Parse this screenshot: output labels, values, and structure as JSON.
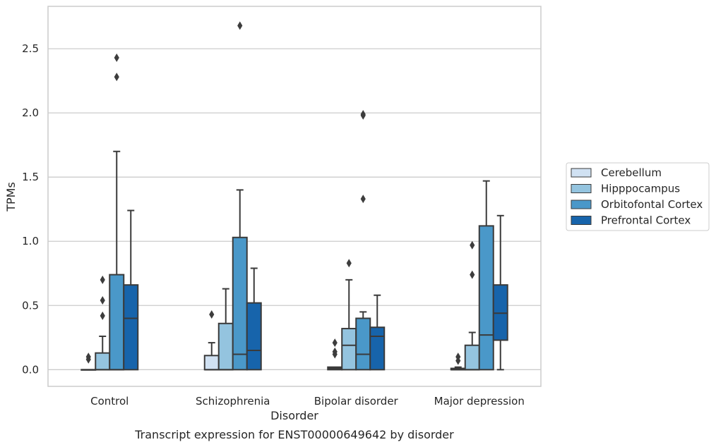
{
  "caption": "Transcript expression for ENST00000649642 by disorder",
  "chart_data": {
    "type": "box",
    "xlabel": "Disorder",
    "ylabel": "TPMs",
    "ylim": [
      -0.13,
      2.83
    ],
    "yticks": [
      "0.0",
      "0.5",
      "1.0",
      "1.5",
      "2.0",
      "2.5"
    ],
    "grid": true,
    "legend_position": "right",
    "categories": [
      "Control",
      "Schizophrenia",
      "Bipolar disorder",
      "Major depression"
    ],
    "series": [
      {
        "name": "Cerebellum",
        "color": "#d0e1f2",
        "boxes": [
          {
            "q1": 0.0,
            "median": 0.0,
            "q3": 0.0,
            "whisker_low": 0.0,
            "whisker_high": 0.0,
            "outliers": [
              0.08,
              0.1
            ]
          },
          {
            "q1": 0.0,
            "median": 0.0,
            "q3": 0.11,
            "whisker_low": 0.0,
            "whisker_high": 0.21,
            "outliers": [
              0.43
            ]
          },
          {
            "q1": 0.0,
            "median": 0.01,
            "q3": 0.02,
            "whisker_low": 0.0,
            "whisker_high": 0.02,
            "outliers": [
              0.12,
              0.14,
              0.21
            ]
          },
          {
            "q1": 0.0,
            "median": 0.0,
            "q3": 0.01,
            "whisker_low": 0.0,
            "whisker_high": 0.02,
            "outliers": [
              0.07,
              0.1
            ]
          }
        ]
      },
      {
        "name": "Hipppocampus",
        "color": "#94c4df",
        "boxes": [
          {
            "q1": 0.0,
            "median": 0.0,
            "q3": 0.13,
            "whisker_low": 0.0,
            "whisker_high": 0.26,
            "outliers": [
              0.42,
              0.54,
              0.7
            ]
          },
          {
            "q1": 0.0,
            "median": 0.0,
            "q3": 0.36,
            "whisker_low": 0.0,
            "whisker_high": 0.63,
            "outliers": []
          },
          {
            "q1": 0.0,
            "median": 0.19,
            "q3": 0.32,
            "whisker_low": 0.0,
            "whisker_high": 0.7,
            "outliers": [
              0.83
            ]
          },
          {
            "q1": 0.0,
            "median": 0.0,
            "q3": 0.19,
            "whisker_low": 0.0,
            "whisker_high": 0.29,
            "outliers": [
              0.74,
              0.97
            ]
          }
        ]
      },
      {
        "name": "Orbitofontal Cortex",
        "color": "#4a98c9",
        "boxes": [
          {
            "q1": 0.0,
            "median": 0.0,
            "q3": 0.74,
            "whisker_low": 0.0,
            "whisker_high": 1.7,
            "outliers": [
              2.28,
              2.43
            ]
          },
          {
            "q1": 0.0,
            "median": 0.12,
            "q3": 1.03,
            "whisker_low": 0.0,
            "whisker_high": 1.4,
            "outliers": [
              2.68
            ]
          },
          {
            "q1": 0.0,
            "median": 0.12,
            "q3": 0.4,
            "whisker_low": 0.0,
            "whisker_high": 0.45,
            "outliers": [
              1.33,
              1.98,
              1.99
            ]
          },
          {
            "q1": 0.0,
            "median": 0.27,
            "q3": 1.12,
            "whisker_low": 0.0,
            "whisker_high": 1.47,
            "outliers": []
          }
        ]
      },
      {
        "name": "Prefrontal Cortex",
        "color": "#1764ab",
        "boxes": [
          {
            "q1": 0.0,
            "median": 0.4,
            "q3": 0.66,
            "whisker_low": 0.0,
            "whisker_high": 1.24,
            "outliers": []
          },
          {
            "q1": 0.0,
            "median": 0.15,
            "q3": 0.52,
            "whisker_low": 0.0,
            "whisker_high": 0.79,
            "outliers": []
          },
          {
            "q1": 0.0,
            "median": 0.26,
            "q3": 0.33,
            "whisker_low": 0.0,
            "whisker_high": 0.58,
            "outliers": []
          },
          {
            "q1": 0.23,
            "median": 0.44,
            "q3": 0.66,
            "whisker_low": 0.0,
            "whisker_high": 1.2,
            "outliers": []
          }
        ]
      }
    ]
  }
}
